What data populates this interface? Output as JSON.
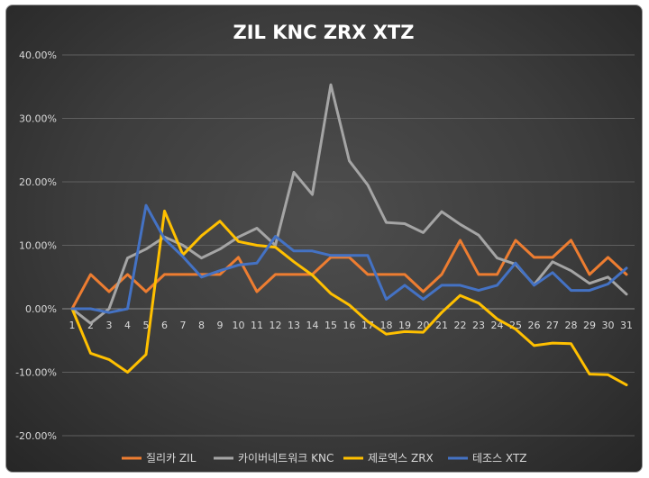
{
  "chart_data": {
    "type": "line",
    "title": "ZIL KNC ZRX XTZ",
    "x": [
      1,
      2,
      3,
      4,
      5,
      6,
      7,
      8,
      9,
      10,
      11,
      12,
      13,
      14,
      15,
      16,
      17,
      18,
      19,
      20,
      21,
      22,
      23,
      24,
      25,
      26,
      27,
      28,
      29,
      30,
      31
    ],
    "y_ticks": [
      "40.00%",
      "30.00%",
      "20.00%",
      "10.00%",
      "0.00%",
      "-10.00%",
      "-20.00%"
    ],
    "ylim": [
      -20,
      40
    ],
    "grid": "horizontal",
    "legend_position": "bottom",
    "series": [
      {
        "name": "질리카 ZIL",
        "color": "#ed7d31",
        "values": [
          0,
          5.4,
          2.7,
          5.4,
          2.7,
          5.4,
          5.4,
          5.4,
          5.4,
          8.1,
          2.7,
          5.4,
          5.4,
          5.4,
          8.1,
          8.1,
          5.4,
          5.4,
          5.4,
          2.7,
          5.4,
          10.8,
          5.4,
          5.4,
          10.8,
          8.1,
          8.1,
          10.8,
          5.4,
          8.1,
          5.4
        ]
      },
      {
        "name": "카이버네트워크 KNC",
        "color": "#a5a5a5",
        "values": [
          0,
          -2.3,
          0,
          8,
          9.4,
          11.3,
          10,
          8,
          9.4,
          11.3,
          12.7,
          10,
          21.5,
          18,
          35.3,
          23.3,
          19.5,
          13.6,
          13.4,
          12,
          15.3,
          13.3,
          11.6,
          8,
          7,
          3.8,
          7.4,
          6,
          4,
          5,
          2.3
        ]
      },
      {
        "name": "제로엑스 ZRX",
        "color": "#ffc000",
        "values": [
          0,
          -7,
          -8,
          -10,
          -7.2,
          15.4,
          8.5,
          11.5,
          13.8,
          10.6,
          10,
          9.7,
          7.4,
          5.3,
          2.4,
          0.6,
          -2,
          -4,
          -3.6,
          -3.7,
          -0.6,
          2.1,
          0.9,
          -1.6,
          -3.2,
          -5.8,
          -5.4,
          -5.5,
          -10.3,
          -10.4,
          -12
        ]
      },
      {
        "name": "테조스 XTZ",
        "color": "#4472c4",
        "values": [
          0,
          0,
          -0.6,
          0,
          16.3,
          11,
          8.2,
          5,
          6,
          6.9,
          7.2,
          11.4,
          9.1,
          9.1,
          8.4,
          8.4,
          8.4,
          1.5,
          3.7,
          1.5,
          3.7,
          3.7,
          2.9,
          3.7,
          7.2,
          3.7,
          5.7,
          2.9,
          2.9,
          3.9,
          6.4
        ]
      }
    ]
  }
}
